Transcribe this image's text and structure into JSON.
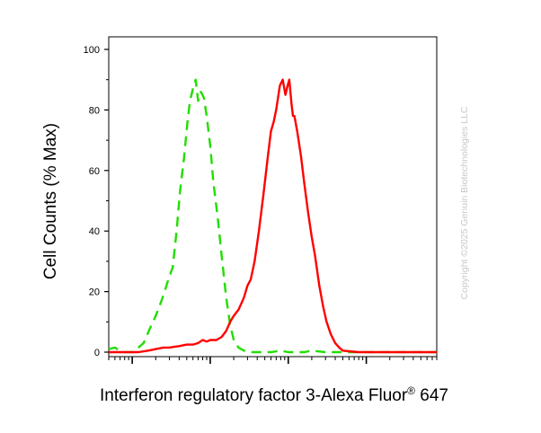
{
  "chart_data": {
    "type": "line",
    "ylabel": "Cell Counts (% Max)",
    "xlabel_main": "Interferon regulatory factor 3-Alexa Fluor",
    "xlabel_sup": "®",
    "xlabel_tail": " 647",
    "xscale": "log",
    "xlim": [
      0.5,
      8000
    ],
    "ylim": [
      0,
      100
    ],
    "yticks": [
      0,
      20,
      40,
      60,
      80,
      100
    ],
    "grid": false,
    "series": [
      {
        "color": "#22dd00",
        "dashed": true,
        "points": [
          [
            0.5,
            1
          ],
          [
            0.6,
            1.5
          ],
          [
            0.7,
            0.3
          ],
          [
            0.8,
            0
          ],
          [
            1.0,
            0
          ],
          [
            1.2,
            1.5
          ],
          [
            1.4,
            3
          ],
          [
            1.7,
            8
          ],
          [
            2.0,
            12
          ],
          [
            2.3,
            16
          ],
          [
            2.6,
            20
          ],
          [
            2.9,
            24
          ],
          [
            3.3,
            28
          ],
          [
            3.7,
            40
          ],
          [
            4.1,
            53
          ],
          [
            4.6,
            64
          ],
          [
            5.1,
            76
          ],
          [
            5.5,
            83
          ],
          [
            6.0,
            87
          ],
          [
            6.5,
            90
          ],
          [
            7.0,
            83
          ],
          [
            7.6,
            86
          ],
          [
            8.3,
            84
          ],
          [
            9.0,
            78
          ],
          [
            10,
            68
          ],
          [
            11,
            56
          ],
          [
            12.5,
            44
          ],
          [
            14,
            32
          ],
          [
            16,
            18
          ],
          [
            18,
            9
          ],
          [
            20,
            4
          ],
          [
            23,
            1.5
          ],
          [
            27,
            0.5
          ],
          [
            35,
            0
          ],
          [
            60,
            0
          ],
          [
            80,
            0.5
          ],
          [
            100,
            0
          ],
          [
            160,
            0
          ],
          [
            200,
            0.5
          ],
          [
            300,
            0
          ],
          [
            8000,
            0
          ]
        ]
      },
      {
        "color": "#ff0000",
        "dashed": false,
        "points": [
          [
            0.5,
            0
          ],
          [
            1.2,
            0
          ],
          [
            1.6,
            0.5
          ],
          [
            2.0,
            1
          ],
          [
            2.5,
            1.5
          ],
          [
            3.0,
            1.5
          ],
          [
            3.5,
            1.8
          ],
          [
            4.0,
            2
          ],
          [
            5.0,
            2.5
          ],
          [
            6.0,
            2.5
          ],
          [
            7.0,
            3
          ],
          [
            8.0,
            4
          ],
          [
            9.0,
            3.5
          ],
          [
            10,
            4
          ],
          [
            12,
            4
          ],
          [
            14,
            5
          ],
          [
            16,
            7
          ],
          [
            18,
            10
          ],
          [
            20,
            12
          ],
          [
            23,
            14
          ],
          [
            27,
            18
          ],
          [
            30,
            22
          ],
          [
            33,
            24
          ],
          [
            37,
            30
          ],
          [
            42,
            40
          ],
          [
            48,
            52
          ],
          [
            55,
            65
          ],
          [
            60,
            73
          ],
          [
            65,
            76
          ],
          [
            70,
            80
          ],
          [
            78,
            88
          ],
          [
            85,
            90
          ],
          [
            92,
            85
          ],
          [
            98,
            88
          ],
          [
            103,
            90
          ],
          [
            110,
            82
          ],
          [
            115,
            78
          ],
          [
            120,
            78
          ],
          [
            130,
            73
          ],
          [
            145,
            65
          ],
          [
            160,
            56
          ],
          [
            180,
            46
          ],
          [
            200,
            38
          ],
          [
            220,
            32
          ],
          [
            250,
            22
          ],
          [
            280,
            15
          ],
          [
            310,
            10
          ],
          [
            350,
            6
          ],
          [
            400,
            3
          ],
          [
            450,
            1.5
          ],
          [
            500,
            0.5
          ],
          [
            600,
            0.3
          ],
          [
            800,
            0
          ],
          [
            1200,
            0
          ],
          [
            8000,
            0
          ]
        ]
      }
    ]
  },
  "watermark": "Copyright ©2025 Genuin Biotechnologies LLC"
}
